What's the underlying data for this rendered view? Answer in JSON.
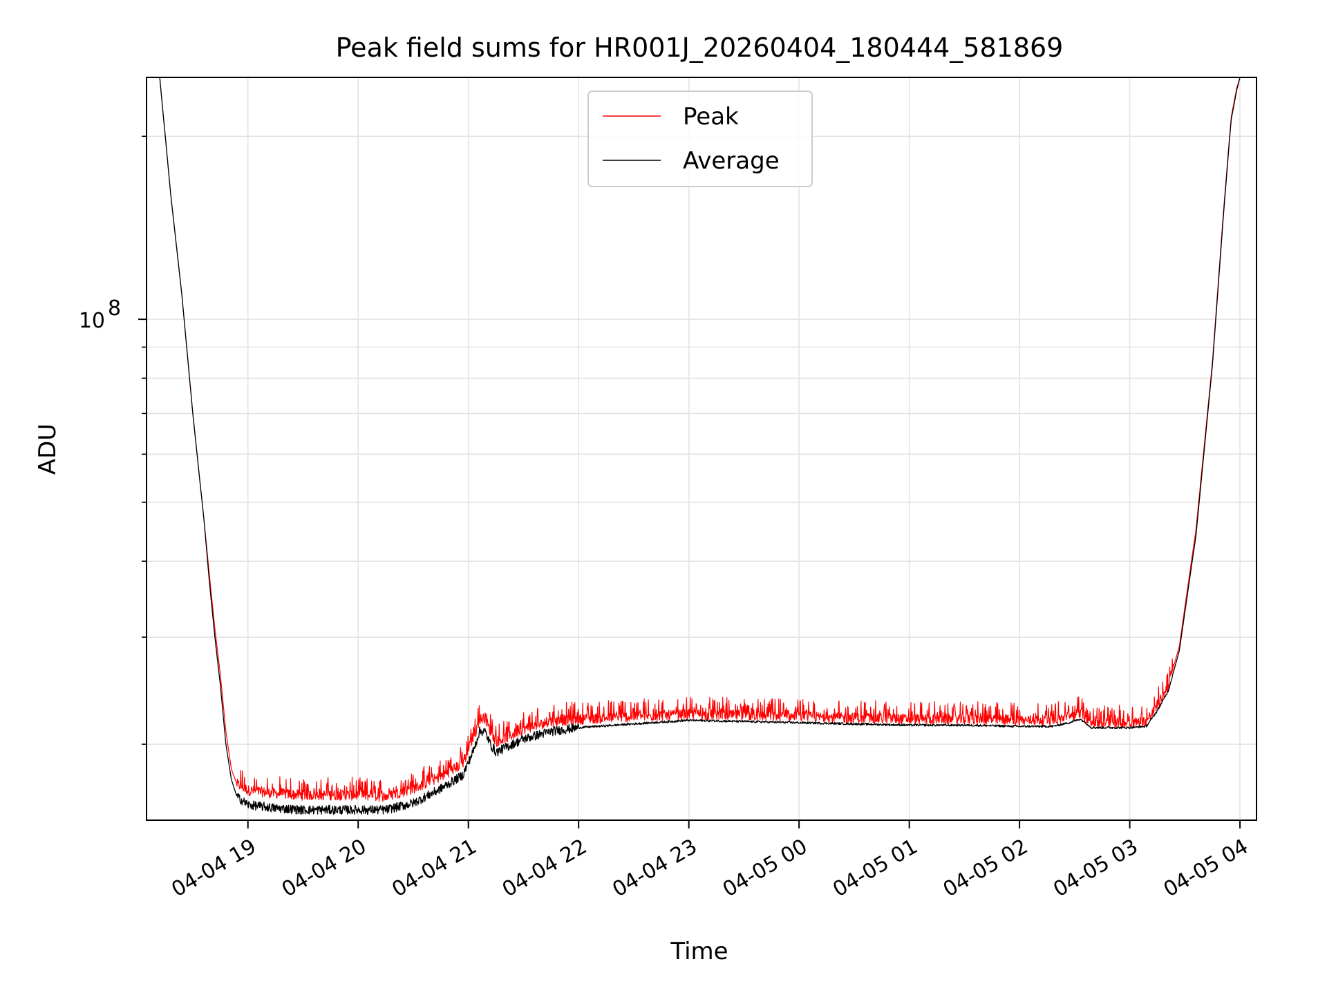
{
  "chart_data": {
    "type": "line",
    "title": "Peak field sums for HR001J_20260404_180444_581869",
    "xlabel": "Time",
    "ylabel": "ADU",
    "yscale": "log",
    "ylim": [
      15000000,
      250000000
    ],
    "xlim": [
      18.08,
      28.15
    ],
    "grid": true,
    "legend_position": "top-center",
    "y_major_tick": {
      "value": 100000000,
      "label_base": "10",
      "label_exp": "8"
    },
    "y_minor_ticks": [
      20000000,
      30000000,
      40000000,
      50000000,
      60000000,
      70000000,
      80000000,
      90000000,
      200000000
    ],
    "x_ticks": [
      {
        "value": 19,
        "label": "04-04 19"
      },
      {
        "value": 20,
        "label": "04-04 20"
      },
      {
        "value": 21,
        "label": "04-04 21"
      },
      {
        "value": 22,
        "label": "04-04 22"
      },
      {
        "value": 23,
        "label": "04-04 23"
      },
      {
        "value": 24,
        "label": "04-05 00"
      },
      {
        "value": 25,
        "label": "04-05 01"
      },
      {
        "value": 26,
        "label": "04-05 02"
      },
      {
        "value": 27,
        "label": "04-05 03"
      },
      {
        "value": 28,
        "label": "04-05 04"
      }
    ],
    "series": [
      {
        "name": "Peak",
        "color": "#ff0000",
        "note": "values in ADU; spiky noise above the average",
        "x": [
          18.2,
          18.3,
          18.4,
          18.5,
          18.6,
          18.65,
          18.7,
          18.75,
          18.8,
          18.85,
          18.9,
          19.0,
          19.25,
          19.5,
          19.75,
          20.0,
          20.25,
          20.5,
          20.75,
          20.95,
          21.05,
          21.1,
          21.15,
          21.2,
          21.25,
          21.35,
          21.5,
          21.75,
          22.0,
          22.5,
          23.0,
          23.5,
          24.0,
          24.5,
          25.0,
          25.5,
          26.0,
          26.3,
          26.45,
          26.55,
          26.6,
          26.65,
          26.75,
          27.0,
          27.15,
          27.25,
          27.35,
          27.45,
          27.6,
          27.75,
          27.85,
          27.92,
          27.97,
          28.0
        ],
        "y": [
          250000000,
          160000000,
          110000000,
          70000000,
          47000000,
          38000000,
          31000000,
          26000000,
          21000000,
          18200000,
          17200000,
          16800000,
          16600000,
          16500000,
          16500000,
          16500000,
          16400000,
          16900000,
          17700000,
          18600000,
          20500000,
          22000000,
          22100000,
          21000000,
          20200000,
          20500000,
          21200000,
          21800000,
          22000000,
          22200000,
          22400000,
          22300000,
          22200000,
          22100000,
          22000000,
          22000000,
          21900000,
          21900000,
          22200000,
          22500000,
          22200000,
          21700000,
          21700000,
          21700000,
          21800000,
          23100000,
          25000000,
          29000000,
          45000000,
          85000000,
          150000000,
          215000000,
          240000000,
          250000000
        ]
      },
      {
        "name": "Average",
        "color": "#000000",
        "note": "values in ADU",
        "x": [
          18.2,
          18.3,
          18.4,
          18.5,
          18.6,
          18.65,
          18.7,
          18.75,
          18.8,
          18.85,
          18.9,
          19.0,
          19.25,
          19.5,
          19.75,
          20.0,
          20.25,
          20.5,
          20.75,
          20.95,
          21.05,
          21.1,
          21.15,
          21.2,
          21.25,
          21.35,
          21.5,
          21.75,
          22.0,
          22.5,
          23.0,
          23.5,
          24.0,
          24.5,
          25.0,
          25.5,
          26.0,
          26.3,
          26.45,
          26.55,
          26.6,
          26.65,
          26.75,
          27.0,
          27.15,
          27.25,
          27.35,
          27.45,
          27.6,
          27.75,
          27.85,
          27.92,
          27.97,
          28.0
        ],
        "y": [
          250000000,
          160000000,
          110000000,
          70000000,
          47000000,
          37000000,
          30000000,
          25000000,
          20000000,
          17500000,
          16400000,
          15900000,
          15700000,
          15600000,
          15600000,
          15600000,
          15600000,
          16000000,
          16900000,
          17800000,
          19600000,
          21000000,
          21000000,
          20000000,
          19400000,
          19800000,
          20400000,
          21000000,
          21300000,
          21600000,
          21900000,
          21800000,
          21700000,
          21600000,
          21500000,
          21500000,
          21400000,
          21400000,
          21700000,
          22000000,
          21700000,
          21300000,
          21300000,
          21300000,
          21400000,
          22700000,
          24500000,
          28500000,
          44000000,
          84000000,
          148000000,
          213000000,
          238000000,
          250000000
        ]
      }
    ]
  }
}
